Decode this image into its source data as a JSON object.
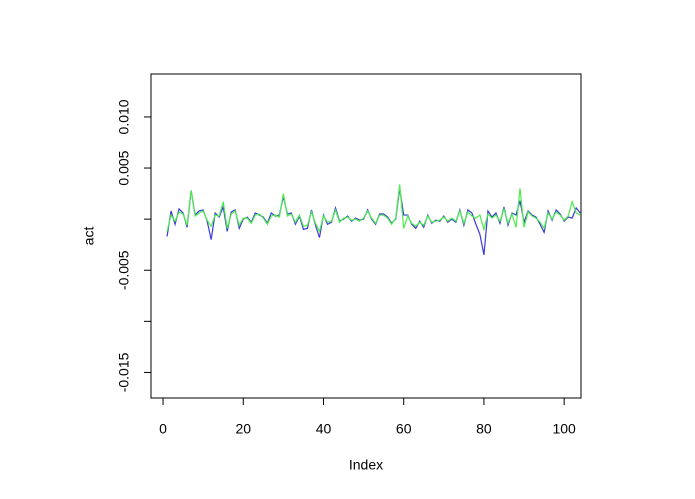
{
  "chart_data": {
    "type": "line",
    "x_label": "Index",
    "y_label": "act",
    "x": [
      1,
      2,
      3,
      4,
      5,
      6,
      7,
      8,
      9,
      10,
      11,
      12,
      13,
      14,
      15,
      16,
      17,
      18,
      19,
      20,
      21,
      22,
      23,
      24,
      25,
      26,
      27,
      28,
      29,
      30,
      31,
      32,
      33,
      34,
      35,
      36,
      37,
      38,
      39,
      40,
      41,
      42,
      43,
      44,
      45,
      46,
      47,
      48,
      49,
      50,
      51,
      52,
      53,
      54,
      55,
      56,
      57,
      58,
      59,
      60,
      61,
      62,
      63,
      64,
      65,
      66,
      67,
      68,
      69,
      70,
      71,
      72,
      73,
      74,
      75,
      76,
      77,
      78,
      79,
      80,
      81,
      82,
      83,
      84,
      85,
      86,
      87,
      88,
      89,
      90,
      91,
      92,
      93,
      94,
      95,
      96,
      97,
      98,
      99,
      100,
      101,
      102,
      103,
      104
    ],
    "series": [
      {
        "color": "#3b3bd6",
        "values": [
          -0.0017,
          0.0008,
          -0.0005,
          0.001,
          0.0006,
          -0.0008,
          0.0028,
          0.0004,
          0.0008,
          0.0009,
          -0.0002,
          -0.002,
          0.0006,
          0.0002,
          0.0012,
          -0.0012,
          0.0007,
          0.0009,
          -0.0009,
          0,
          0.0002,
          -0.0003,
          0.0006,
          0.0004,
          0.0002,
          -0.0004,
          0.0006,
          0.0003,
          0.0004,
          0.0022,
          0.0005,
          0.0006,
          -0.0005,
          0.0003,
          -0.001,
          -0.0009,
          0.0009,
          -0.0006,
          -0.0018,
          0.0004,
          -0.0005,
          -0.0003,
          0.0011,
          -0.0002,
          0,
          0.0003,
          -0.0002,
          0.0001,
          -0.0001,
          0,
          0.0009,
          0,
          -0.0005,
          0.0005,
          0.0005,
          0.0002,
          -0.0004,
          0,
          0.003,
          0.0004,
          0.0004,
          -0.0005,
          -0.0009,
          -0.0002,
          -0.0008,
          0.0004,
          -0.0004,
          -0.0001,
          -0.0002,
          0.0003,
          -0.0003,
          0,
          -0.0003,
          0.0009,
          -0.0006,
          0.0009,
          0.0006,
          -0.0005,
          -0.0015,
          -0.0035,
          0.0008,
          0.0002,
          0.0006,
          -0.0004,
          0.0012,
          -0.0006,
          0.0006,
          0.0004,
          0.0018,
          -0.0003,
          0.0008,
          0.0004,
          0.0002,
          -0.0005,
          -0.0013,
          0.0008,
          -0.0001,
          0.0009,
          0.0005,
          -0.0002,
          0.0002,
          0.0001,
          0.0011,
          0.0006
        ]
      },
      {
        "color": "#4ced4c",
        "values": [
          -0.0012,
          0.0004,
          -0.0002,
          0.0007,
          0.0005,
          -0.0006,
          0.0028,
          0.0003,
          0.0006,
          0.0008,
          -0.0001,
          -0.0007,
          0.0004,
          0.0003,
          0.0017,
          -0.0009,
          0.0005,
          0.0008,
          -0.0006,
          0.0001,
          0.0001,
          -0.0004,
          0.0004,
          0.0005,
          0.0001,
          -0.0005,
          0.0003,
          0.0004,
          0.0002,
          0.0025,
          0.0003,
          0.0005,
          -0.0003,
          0.0004,
          -0.0007,
          -0.0006,
          0.0007,
          -0.0004,
          -0.0012,
          0.0003,
          -0.0003,
          -0.0002,
          0.0009,
          -0.0003,
          0.0001,
          0.0002,
          -0.0001,
          0,
          -0.0002,
          0.0001,
          0.0008,
          0.0001,
          -0.0004,
          0.0004,
          0.0004,
          0.0001,
          -0.0005,
          0.0001,
          0.0034,
          -0.0009,
          0.0003,
          -0.0004,
          -0.0007,
          -0.0003,
          -0.0006,
          0.0003,
          -0.0003,
          -0.0002,
          -0.0001,
          0.0002,
          -0.0002,
          0.0001,
          -0.0002,
          0.0008,
          -0.0004,
          0.0007,
          0.0003,
          0.0001,
          0.0004,
          -0.001,
          0.0005,
          0.0001,
          0.0004,
          -0.0002,
          0.001,
          -0.0004,
          0.0005,
          -0.0008,
          0.003,
          -0.0008,
          0.0007,
          0.0003,
          0.0001,
          -0.0003,
          -0.0009,
          0.0006,
          0,
          0.0007,
          0.0004,
          -0.0001,
          0.0003,
          0.0017,
          0.0006,
          0.0004
        ]
      }
    ],
    "xlim": [
      -3,
      104.2
    ],
    "ylim": [
      -0.0175,
      0.0142
    ],
    "xticks": [
      0,
      20,
      40,
      60,
      80,
      100
    ],
    "yticks": [
      {
        "value": -0.015,
        "label": "-0.015"
      },
      {
        "value": -0.01,
        "label": null
      },
      {
        "value": -0.005,
        "label": "-0.005"
      },
      {
        "value": 0,
        "label": null
      },
      {
        "value": 0.005,
        "label": "0.005"
      },
      {
        "value": 0.01,
        "label": "0.010"
      }
    ]
  }
}
